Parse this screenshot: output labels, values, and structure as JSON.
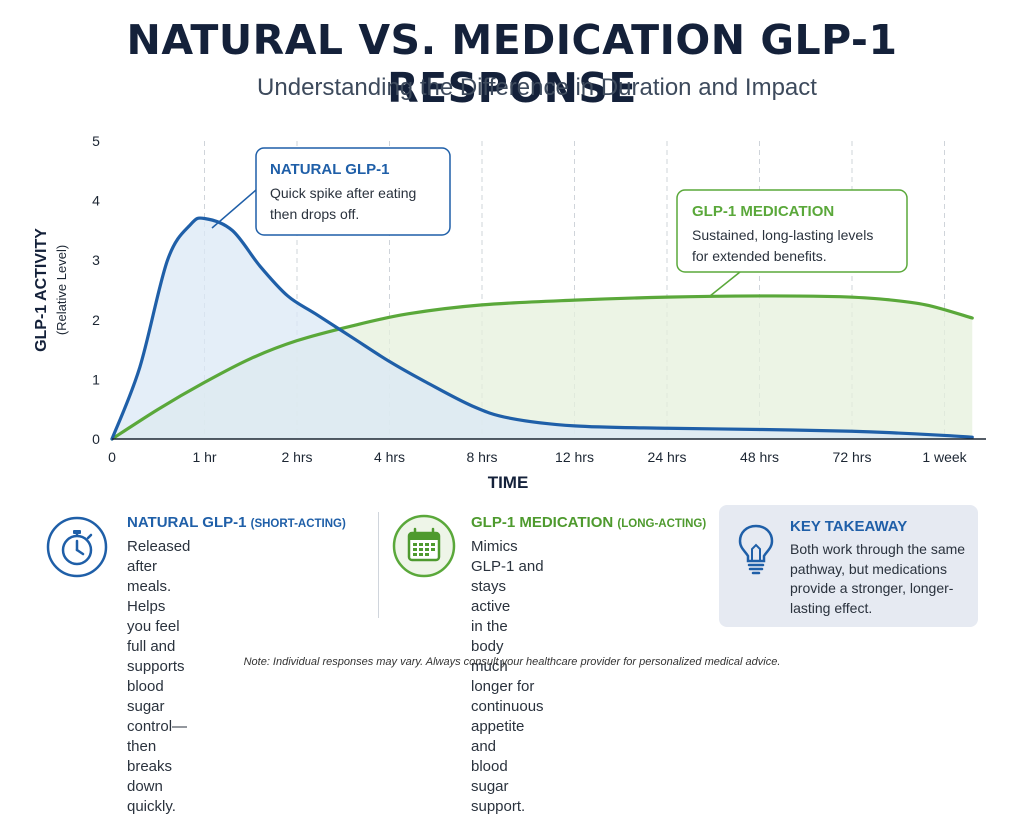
{
  "title": "NATURAL VS. MEDICATION GLP-1 RESPONSE",
  "subtitle": "Understanding the Difference in Duration and Impact",
  "chart_data": {
    "type": "area",
    "xlabel": "TIME",
    "ylabel": "GLP-1 ACTIVITY",
    "ylabel_sub": "(Relative Level)",
    "ylim": [
      0,
      5
    ],
    "yticks": [
      "0",
      "1",
      "2",
      "3",
      "4",
      "5"
    ],
    "categories": [
      "0",
      "1 hr",
      "2 hrs",
      "4 hrs",
      "8 hrs",
      "12 hrs",
      "24 hrs",
      "48 hrs",
      "72 hrs",
      "1 week"
    ],
    "grid": "vertical dashed",
    "series": [
      {
        "name": "NATURAL GLP-1",
        "color": "#1f5fa8",
        "fill": "#dbe8f6",
        "x": [
          0,
          0.3,
          0.6,
          0.85,
          1.0,
          1.3,
          1.6,
          1.9,
          2.2,
          2.6,
          3.0,
          3.4,
          3.9,
          4.3,
          5.0,
          6.0,
          7.0,
          8.0,
          8.5,
          9.0,
          9.3
        ],
        "values": [
          0,
          1.2,
          3.0,
          3.6,
          3.7,
          3.5,
          2.9,
          2.4,
          2.1,
          1.7,
          1.3,
          0.95,
          0.55,
          0.35,
          0.22,
          0.18,
          0.16,
          0.13,
          0.1,
          0.06,
          0.03
        ]
      },
      {
        "name": "GLP-1 MEDICATION",
        "color": "#5aa83a",
        "fill": "#e5f0dc",
        "x": [
          0,
          0.5,
          1.0,
          1.5,
          2.0,
          2.6,
          3.2,
          4.0,
          5.0,
          6.0,
          7.0,
          7.8,
          8.3,
          8.8,
          9.3
        ],
        "values": [
          0,
          0.5,
          0.95,
          1.35,
          1.65,
          1.9,
          2.1,
          2.25,
          2.33,
          2.38,
          2.4,
          2.39,
          2.35,
          2.25,
          2.03
        ]
      }
    ],
    "annotations": [
      {
        "title": "NATURAL GLP-1",
        "text": [
          "Quick spike after eating",
          "then drops off."
        ]
      },
      {
        "title": "GLP-1 MEDICATION",
        "text": [
          "Sustained, long-lasting levels",
          "for extended benefits."
        ]
      }
    ]
  },
  "panels": {
    "natural": {
      "icon": "stopwatch-icon",
      "title": "NATURAL GLP-1",
      "tag": "(SHORT-ACTING)",
      "color": "#1f5fa8",
      "lines": [
        "Released after meals.",
        "Helps you feel full and supports",
        "blood sugar control—then",
        "breaks down quickly."
      ]
    },
    "medication": {
      "icon": "calendar-icon",
      "title": "GLP-1 MEDICATION",
      "tag": "(LONG-ACTING)",
      "color": "#4e9a2e",
      "lines": [
        "Mimics GLP-1 and stays active",
        "in the body much longer for",
        "continuous appetite and",
        "blood sugar support."
      ]
    },
    "takeaway": {
      "icon": "lightbulb-icon",
      "title": "KEY TAKEAWAY",
      "color": "#1f5fa8",
      "lines": [
        "Both work through the same",
        "pathway, but medications",
        "provide a stronger, longer-",
        "lasting effect."
      ]
    }
  },
  "note": "Note: Individual responses may vary. Always consult your healthcare provider for personalized medical advice."
}
